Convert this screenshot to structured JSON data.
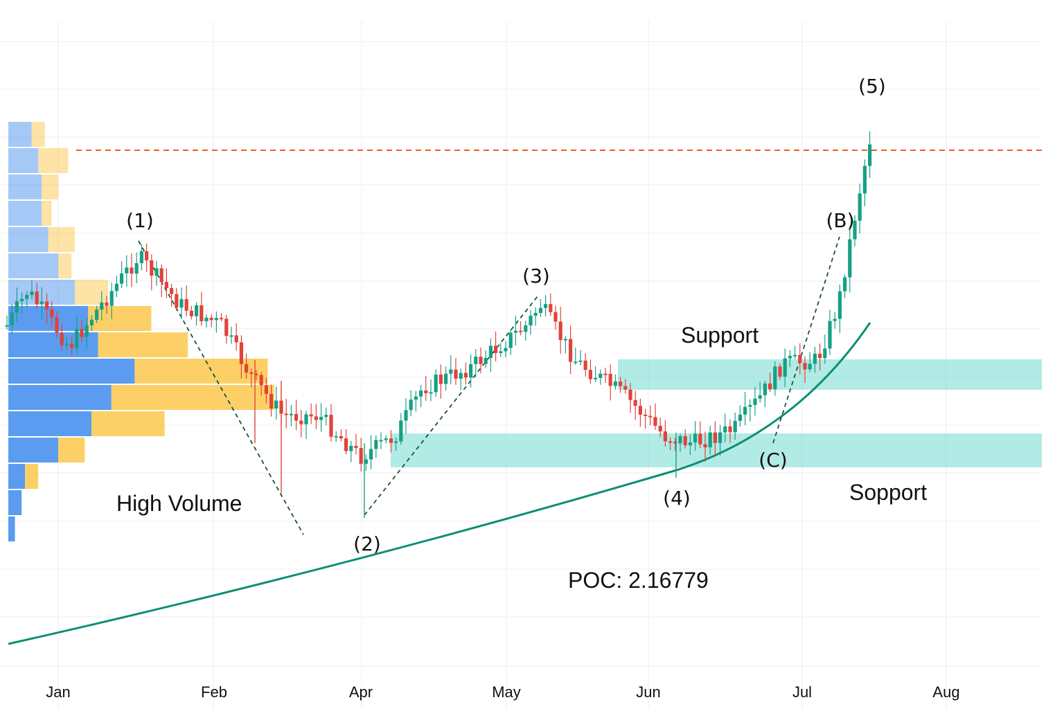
{
  "chart_data": {
    "type": "candlestick",
    "x_axis": {
      "tick_labels": [
        "Jan",
        "Feb",
        "Apr",
        "May",
        "Jun",
        "Jul",
        "Aug"
      ]
    },
    "y_axis": {
      "tick_labels": [],
      "range_note": "no price scale printed"
    },
    "grid": true,
    "colors": {
      "up": "#16a085",
      "down": "#e0433a",
      "zone": "#7fdcd4",
      "trend": "#0a8f72",
      "resistance": "#f05a28",
      "volume_blue": "#5b9cf0",
      "volume_yellow": "#fcc84c"
    },
    "poc_label": "POC: 2.16779",
    "annotations": {
      "high_volume": "High Volume",
      "support_upper": "Support",
      "support_lower": "Sopport"
    },
    "wave_labels": [
      "(1)",
      "(2)",
      "(3)",
      "(4)",
      "(5)",
      "(B)",
      "(C)"
    ],
    "volume_profile": [
      {
        "blue": 0.07,
        "yellow": 0.04
      },
      {
        "blue": 0.09,
        "yellow": 0.09
      },
      {
        "blue": 0.1,
        "yellow": 0.05
      },
      {
        "blue": 0.1,
        "yellow": 0.03
      },
      {
        "blue": 0.12,
        "yellow": 0.08
      },
      {
        "blue": 0.15,
        "yellow": 0.04
      },
      {
        "blue": 0.2,
        "yellow": 0.1
      },
      {
        "blue": 0.24,
        "yellow": 0.19
      },
      {
        "blue": 0.27,
        "yellow": 0.27
      },
      {
        "blue": 0.38,
        "yellow": 0.4
      },
      {
        "blue": 0.31,
        "yellow": 0.49
      },
      {
        "blue": 0.25,
        "yellow": 0.22
      },
      {
        "blue": 0.15,
        "yellow": 0.08
      },
      {
        "blue": 0.05,
        "yellow": 0.04
      },
      {
        "blue": 0.04,
        "yellow": 0
      },
      {
        "blue": 0.02,
        "yellow": 0
      }
    ],
    "closes": [
      44,
      46,
      52,
      54,
      58,
      60,
      55,
      50,
      46,
      48,
      52,
      56,
      60,
      57,
      54,
      48,
      46,
      42,
      38,
      34,
      30,
      28,
      31,
      36,
      42,
      48,
      52,
      56,
      60,
      63,
      66,
      68,
      71,
      74,
      72,
      75,
      78,
      82,
      86,
      88,
      90,
      92,
      95,
      97,
      99,
      100,
      101,
      103,
      104,
      108,
      112,
      118,
      124,
      130,
      136,
      140,
      146
    ]
  }
}
